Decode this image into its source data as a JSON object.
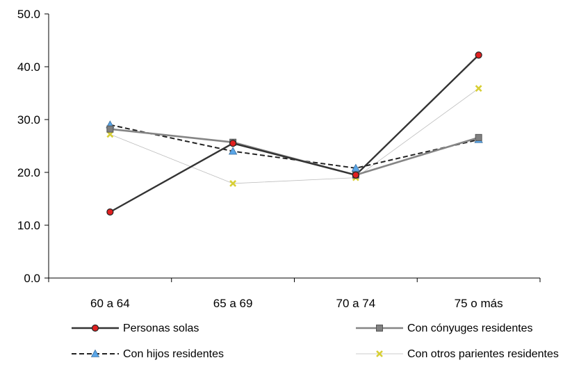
{
  "chart_data": {
    "type": "line",
    "title": "",
    "xlabel": "",
    "ylabel": "",
    "categories": [
      "60 a 64",
      "65 a 69",
      "70 a 74",
      "75 o más"
    ],
    "ylim": [
      0,
      50
    ],
    "yticks": [
      "0.0",
      "10.0",
      "20.0",
      "30.0",
      "40.0",
      "50.0"
    ],
    "grid": false,
    "legend_position": "bottom",
    "series": [
      {
        "name": "Personas solas",
        "values": [
          12.5,
          25.5,
          19.5,
          42.2
        ],
        "color": "#333333",
        "marker": "circle",
        "marker_color": "#e02020",
        "dash": "solid",
        "width": 2.4
      },
      {
        "name": "Con cónyuges residentes",
        "values": [
          28.2,
          25.7,
          19.5,
          26.6
        ],
        "color": "#858585",
        "marker": "square",
        "marker_color": "#808080",
        "dash": "solid",
        "width": 2.6
      },
      {
        "name": "Con hijos residentes",
        "values": [
          29.0,
          24.0,
          20.8,
          26.2
        ],
        "color": "#222222",
        "marker": "triangle",
        "marker_color": "#5aa6e8",
        "dash": "dashed",
        "width": 2.0
      },
      {
        "name": "Con otros parientes residentes",
        "values": [
          27.2,
          17.9,
          19.0,
          35.9
        ],
        "color": "#bdbdbd",
        "marker": "x",
        "marker_color": "#d8cf35",
        "dash": "solid",
        "width": 0.8
      }
    ]
  }
}
